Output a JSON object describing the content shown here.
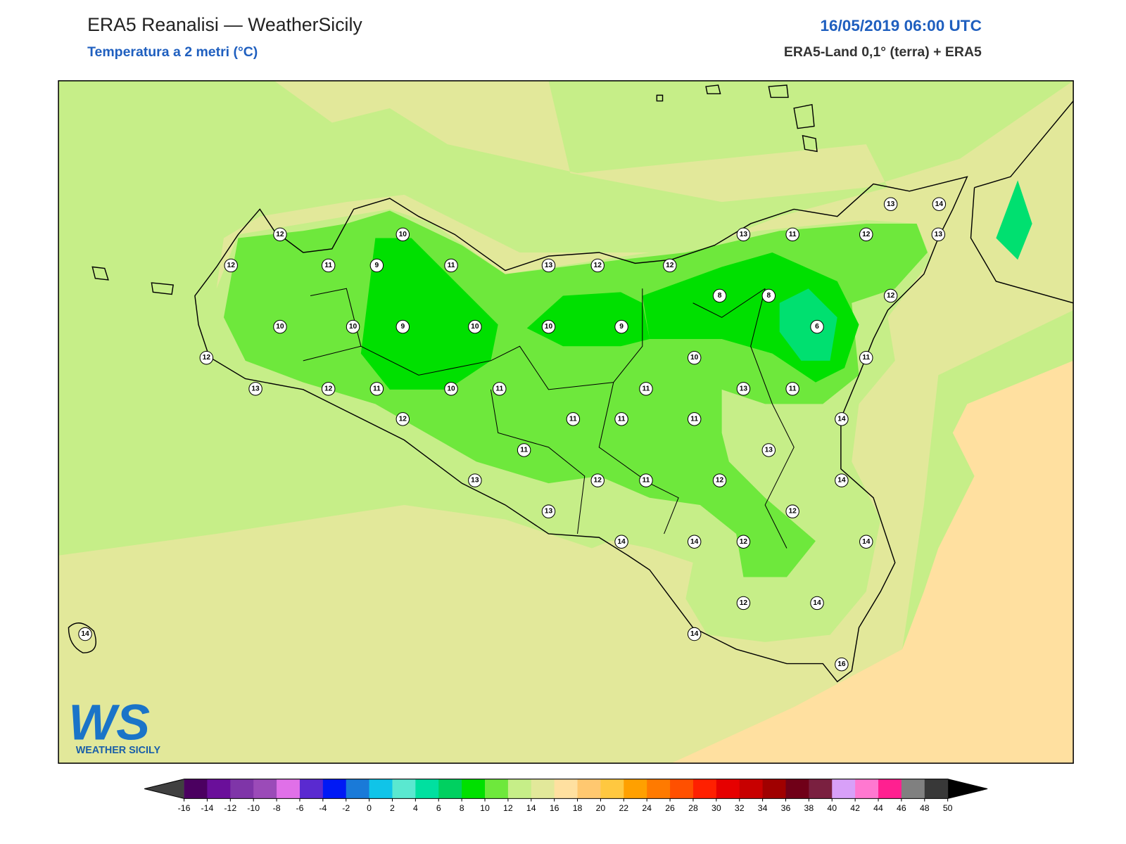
{
  "header": {
    "title": "ERA5 Reanalisi — WeatherSicily",
    "subtitle": "Temperatura a 2 metri (°C)",
    "datetime": "16/05/2019 06:00 UTC",
    "source": "ERA5-Land 0,1° (terra) + ERA5"
  },
  "logo": {
    "mark": "WS",
    "name": "WEATHER SICILY"
  },
  "stations": [
    12,
    10,
    12,
    11,
    9,
    11,
    13,
    12,
    12,
    13,
    11,
    12,
    13,
    13,
    14,
    8,
    8,
    12,
    10,
    10,
    9,
    10,
    10,
    9,
    6,
    12,
    10,
    11,
    13,
    12,
    11,
    10,
    11,
    11,
    13,
    11,
    12,
    11,
    11,
    11,
    14,
    11,
    13,
    13,
    12,
    11,
    12,
    14,
    13,
    12,
    14,
    14,
    12,
    14,
    12,
    14,
    14,
    14,
    16
  ],
  "colorbar": {
    "ticks": [
      -16,
      -14,
      -12,
      -10,
      -8,
      -6,
      -4,
      -2,
      0,
      2,
      4,
      6,
      8,
      10,
      12,
      14,
      16,
      18,
      20,
      22,
      24,
      26,
      28,
      30,
      32,
      34,
      36,
      38,
      40,
      42,
      44,
      46,
      48,
      50
    ],
    "colors": [
      "#4b0060",
      "#6a0f9a",
      "#7f35a8",
      "#9b4bb8",
      "#e070e8",
      "#5a2ad0",
      "#0019f5",
      "#1a7ad8",
      "#10c4e8",
      "#5ae8d0",
      "#00e0a0",
      "#00d060",
      "#00e000",
      "#6ee83c",
      "#c6ee88",
      "#e2e89a",
      "#ffe0a0",
      "#ffc870",
      "#ffc840",
      "#ffa000",
      "#ff7a00",
      "#ff5000",
      "#ff2000",
      "#e60000",
      "#c80000",
      "#a00000",
      "#700018",
      "#7a2040",
      "#d8a0f8",
      "#ff78d0",
      "#ff2090",
      "#808080",
      "#383838"
    ],
    "under": "#404040",
    "over": "#000000"
  }
}
